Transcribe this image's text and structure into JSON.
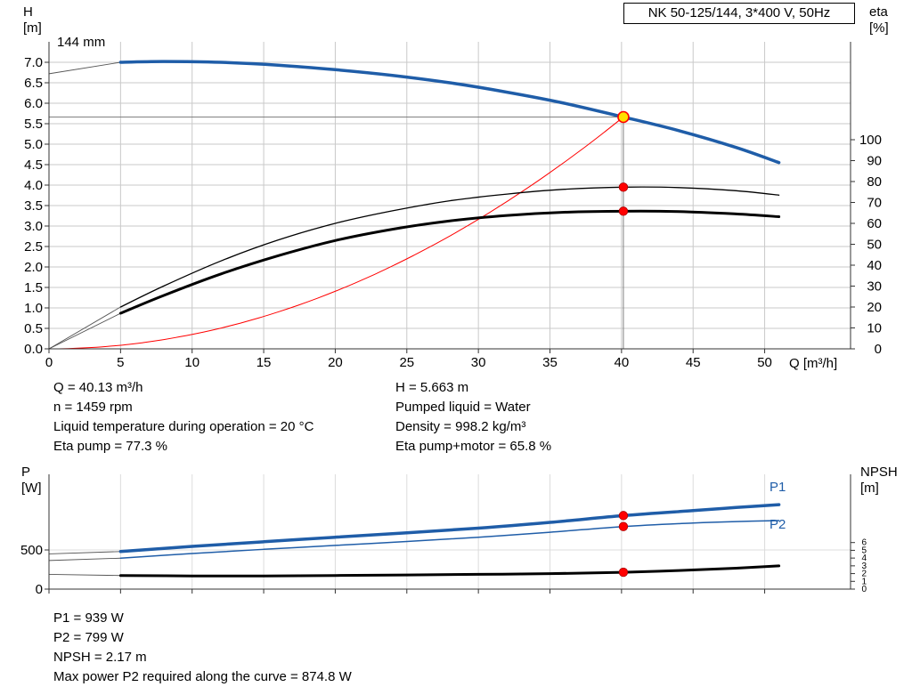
{
  "title_box": {
    "label": "NK 50-125/144, 3*400 V, 50Hz"
  },
  "info_top_left": [
    "Q = 40.13 m³/h",
    "n = 1459 rpm",
    "Liquid temperature during operation = 20 °C",
    "Eta pump = 77.3 %"
  ],
  "info_top_right": [
    "H = 5.663 m",
    "Pumped liquid = Water",
    "Density = 998.2 kg/m³",
    "Eta pump+motor = 65.8 %"
  ],
  "info_bottom": [
    "P1 = 939 W",
    "P2 = 799 W",
    "NPSH = 2.17 m",
    "Max power P2 required along the curve = 874.8 W"
  ],
  "chart_data": [
    {
      "type": "line",
      "title": "NK 50-125/144, 3*400 V, 50Hz",
      "impeller": "144 mm",
      "x_axis": {
        "label": "Q [m³/h]",
        "lim": [
          0,
          56
        ],
        "ticks": [
          "0",
          "5",
          "10",
          "15",
          "20",
          "25",
          "30",
          "35",
          "40",
          "45",
          "50"
        ]
      },
      "left_axis": {
        "name": "H",
        "unit": "[m]",
        "lim": [
          0,
          7.5
        ],
        "ticks": [
          "0.0",
          "0.5",
          "1.0",
          "1.5",
          "2.0",
          "2.5",
          "3.0",
          "3.5",
          "4.0",
          "4.5",
          "5.0",
          "5.5",
          "6.0",
          "6.5",
          "7.0"
        ]
      },
      "right_axis": {
        "name": "eta",
        "unit": "[%]",
        "lim": [
          0,
          146.8
        ],
        "ticks": [
          "0",
          "10",
          "20",
          "30",
          "40",
          "50",
          "60",
          "70",
          "80",
          "90",
          "100"
        ]
      },
      "series": [
        {
          "name": "head",
          "axis": "left",
          "color": "#1f5da8",
          "width": 3.5,
          "ext_from": [
            0,
            6.72
          ],
          "points": [
            [
              5,
              7.0
            ],
            [
              8,
              7.02
            ],
            [
              12,
              7.0
            ],
            [
              16,
              6.93
            ],
            [
              20,
              6.82
            ],
            [
              24,
              6.68
            ],
            [
              28,
              6.5
            ],
            [
              32,
              6.27
            ],
            [
              36,
              6.0
            ],
            [
              40.13,
              5.663
            ],
            [
              44,
              5.33
            ],
            [
              48,
              4.92
            ],
            [
              51,
              4.55
            ]
          ]
        },
        {
          "name": "eta-pump",
          "axis": "right",
          "color": "#000000",
          "width": 1.3,
          "ext_from": [
            0,
            0
          ],
          "points": [
            [
              5,
              20
            ],
            [
              8,
              30
            ],
            [
              12,
              42
            ],
            [
              16,
              52
            ],
            [
              20,
              60
            ],
            [
              24,
              66
            ],
            [
              28,
              70.8
            ],
            [
              32,
              74
            ],
            [
              36,
              76.3
            ],
            [
              40.13,
              77.3
            ],
            [
              44,
              77.1
            ],
            [
              48,
              75.6
            ],
            [
              51,
              73.5
            ]
          ]
        },
        {
          "name": "eta-pump-motor",
          "axis": "right",
          "color": "#000000",
          "width": 3,
          "ext_from": [
            0,
            0
          ],
          "points": [
            [
              5,
              17
            ],
            [
              8,
              25.5
            ],
            [
              12,
              35.8
            ],
            [
              16,
              44.5
            ],
            [
              20,
              51.8
            ],
            [
              24,
              57.2
            ],
            [
              28,
              61.2
            ],
            [
              32,
              63.8
            ],
            [
              36,
              65.3
            ],
            [
              40.13,
              65.8
            ],
            [
              44,
              65.6
            ],
            [
              48,
              64.5
            ],
            [
              51,
              63.2
            ]
          ]
        }
      ],
      "system_curve": {
        "color": "#ff0000",
        "q": 40.13,
        "h": 5.663
      },
      "crosshair": {
        "q": 40.13,
        "value": 5.663
      },
      "markers": [
        {
          "series": "head",
          "q": 40.13,
          "value": 5.663,
          "style": "duty"
        },
        {
          "series": "eta-pump",
          "q": 40.13,
          "value": 77.3,
          "style": "dot"
        },
        {
          "series": "eta-pump-motor",
          "q": 40.13,
          "value": 65.8,
          "style": "dot"
        }
      ],
      "duty_point": {
        "Q_m3h": 40.13,
        "H_m": 5.663,
        "n_rpm": 1459,
        "eta_pump_pct": 77.3,
        "eta_pump_motor_pct": 65.8
      }
    },
    {
      "type": "line",
      "x_axis": {
        "label": "",
        "lim": [
          0,
          56
        ],
        "ticks": [
          "0",
          "5",
          "10",
          "15",
          "20",
          "25",
          "30",
          "35",
          "40",
          "45",
          "50"
        ]
      },
      "left_axis": {
        "name": "P",
        "unit": "[W]",
        "lim": [
          0,
          1466
        ],
        "ticks": [
          "0",
          "500"
        ]
      },
      "right_axis": {
        "name": "NPSH",
        "unit": "[m]",
        "lim": [
          0,
          14.8
        ],
        "ticks": [
          "0",
          "1",
          "2",
          "3",
          "4",
          "5",
          "6"
        ]
      },
      "series": [
        {
          "name": "P1",
          "label": "P1",
          "axis": "left",
          "color": "#1f5da8",
          "width": 3.5,
          "ext_from": [
            0,
            450
          ],
          "points": [
            [
              5,
              480
            ],
            [
              10,
              545
            ],
            [
              15,
              605
            ],
            [
              20,
              662
            ],
            [
              25,
              718
            ],
            [
              30,
              778
            ],
            [
              35,
              852
            ],
            [
              40.13,
              939
            ],
            [
              45,
              1002
            ],
            [
              48,
              1042
            ],
            [
              51,
              1078
            ]
          ]
        },
        {
          "name": "P2",
          "label": "P2",
          "axis": "left",
          "color": "#1f5da8",
          "width": 1.5,
          "ext_from": [
            0,
            365
          ],
          "points": [
            [
              5,
              395
            ],
            [
              10,
              455
            ],
            [
              15,
              508
            ],
            [
              20,
              558
            ],
            [
              25,
              608
            ],
            [
              30,
              662
            ],
            [
              35,
              726
            ],
            [
              40.13,
              799
            ],
            [
              45,
              844
            ],
            [
              48,
              863
            ],
            [
              51,
              875
            ]
          ]
        },
        {
          "name": "NPSH",
          "axis": "right",
          "color": "#000000",
          "width": 3,
          "ext_from": [
            0,
            1.9
          ],
          "points": [
            [
              5,
              1.75
            ],
            [
              10,
              1.7
            ],
            [
              15,
              1.7
            ],
            [
              20,
              1.75
            ],
            [
              25,
              1.82
            ],
            [
              30,
              1.9
            ],
            [
              35,
              2.0
            ],
            [
              40.13,
              2.17
            ],
            [
              44,
              2.4
            ],
            [
              48,
              2.7
            ],
            [
              51,
              3.0
            ]
          ]
        }
      ],
      "markers": [
        {
          "series": "P1",
          "q": 40.13,
          "value": 939,
          "style": "dot"
        },
        {
          "series": "P2",
          "q": 40.13,
          "value": 799,
          "style": "dot"
        },
        {
          "series": "NPSH",
          "q": 40.13,
          "value": 2.17,
          "style": "dot"
        }
      ],
      "duty_values": {
        "P1_W": 939,
        "P2_W": 799,
        "NPSH_m": 2.17,
        "max_P2_W": 874.8
      }
    }
  ]
}
